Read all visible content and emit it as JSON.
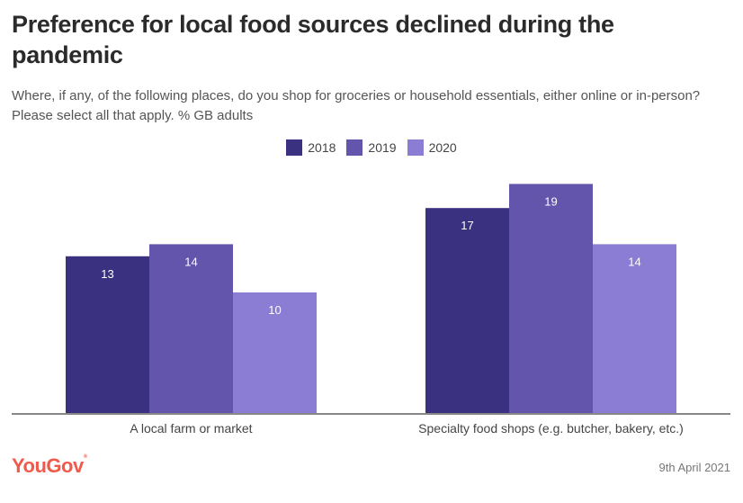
{
  "header": {
    "title": "Preference for local food sources declined during the pandemic",
    "subtitle": "Where, if any, of the following places, do you shop for groceries or household essentials, either online or in-person? Please select all that apply. % GB adults"
  },
  "footer": {
    "logo": "YouGov",
    "date": "9th April 2021"
  },
  "colors": {
    "2018": "#3a3180",
    "2019": "#6355ab",
    "2020": "#8a7dd3",
    "axis": "#888888",
    "brand": "#f05a4b"
  },
  "chart_data": {
    "type": "bar",
    "title": "Preference for local food sources declined during the pandemic",
    "xlabel": "",
    "ylabel": "% GB adults",
    "categories": [
      "A local farm or market",
      "Specialty food shops (e.g. butcher, bakery, etc.)"
    ],
    "series": [
      {
        "name": "2018",
        "values": [
          13,
          17
        ]
      },
      {
        "name": "2019",
        "values": [
          14,
          19
        ]
      },
      {
        "name": "2020",
        "values": [
          10,
          14
        ]
      }
    ],
    "ylim": [
      0,
      19
    ],
    "grid": false,
    "legend": "top-center",
    "data_labels": true
  }
}
